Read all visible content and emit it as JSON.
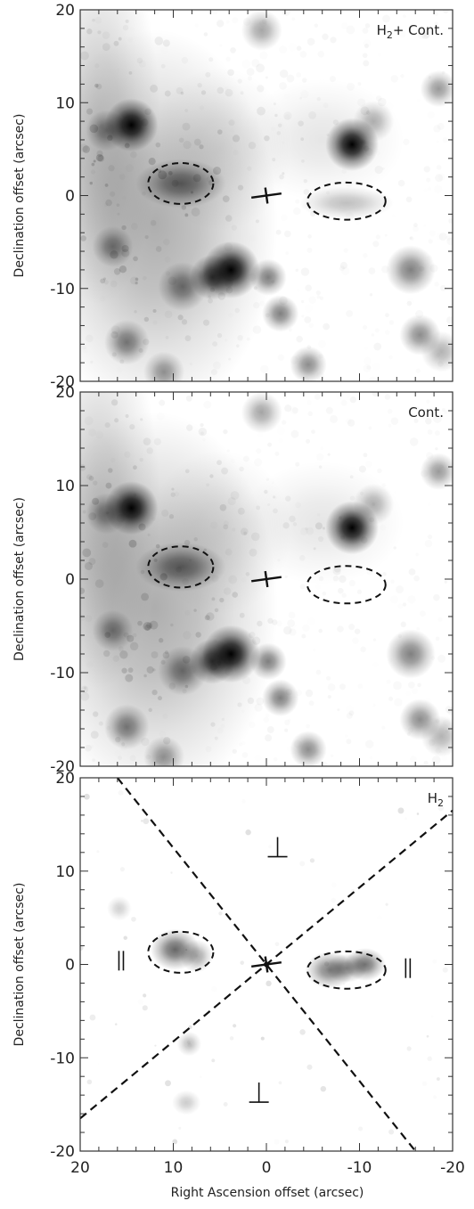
{
  "figure": {
    "x_axis_label": "Right Ascension offset (arcsec)",
    "panels": [
      {
        "id": "h2-plus-cont",
        "label_main": "H",
        "label_sub": "2",
        "label_rest": "+ Cont.",
        "y_axis_label": "Declination offset (arcsec)",
        "show_dashed_lines": false,
        "show_orientation_symbols": false
      },
      {
        "id": "cont",
        "label_main": "Cont.",
        "label_sub": "",
        "label_rest": "",
        "y_axis_label": "Declination offset (arcsec)",
        "show_dashed_lines": false,
        "show_orientation_symbols": false
      },
      {
        "id": "h2",
        "label_main": "H",
        "label_sub": "2",
        "label_rest": "",
        "y_axis_label": "Declination offset (arcsec)",
        "show_dashed_lines": true,
        "show_orientation_symbols": true
      }
    ],
    "axes": {
      "xlim": [
        20,
        -20
      ],
      "ylim": [
        -20,
        20
      ],
      "x_ticks": [
        20,
        10,
        0,
        -10,
        -20
      ],
      "y_ticks": [
        20,
        10,
        0,
        -10,
        -20
      ]
    },
    "ellipses": [
      {
        "ra": 9.2,
        "dec": 1.3,
        "ra_radius": 3.5,
        "dec_radius": 2.2
      },
      {
        "ra": -8.6,
        "dec": -0.6,
        "ra_radius": 4.2,
        "dec_radius": 2.0
      }
    ],
    "stars": [
      {
        "ra": 14.5,
        "dec": 7.6,
        "sigma": 1.3,
        "peak": 1.0
      },
      {
        "ra": -9.2,
        "dec": 5.5,
        "sigma": 1.3,
        "peak": 1.0
      },
      {
        "ra": 3.8,
        "dec": -8.0,
        "sigma": 1.4,
        "peak": 1.0
      },
      {
        "ra": 5.8,
        "dec": -8.8,
        "sigma": 1.1,
        "peak": 0.75
      },
      {
        "ra": 9.0,
        "dec": -9.8,
        "sigma": 1.2,
        "peak": 0.5
      },
      {
        "ra": 17.2,
        "dec": 7.0,
        "sigma": 1.0,
        "peak": 0.45
      },
      {
        "ra": 16.5,
        "dec": -5.5,
        "sigma": 1.0,
        "peak": 0.45
      },
      {
        "ra": 15.0,
        "dec": -15.8,
        "sigma": 1.1,
        "peak": 0.5
      },
      {
        "ra": 11.0,
        "dec": -19.0,
        "sigma": 1.0,
        "peak": 0.4
      },
      {
        "ra": -0.2,
        "dec": -8.8,
        "sigma": 0.9,
        "peak": 0.5
      },
      {
        "ra": -1.5,
        "dec": -12.7,
        "sigma": 0.9,
        "peak": 0.5
      },
      {
        "ra": -4.5,
        "dec": -18.2,
        "sigma": 0.9,
        "peak": 0.45
      },
      {
        "ra": -15.5,
        "dec": -8.0,
        "sigma": 1.2,
        "peak": 0.5
      },
      {
        "ra": -16.5,
        "dec": -15.0,
        "sigma": 1.0,
        "peak": 0.45
      },
      {
        "ra": -18.5,
        "dec": 11.5,
        "sigma": 0.9,
        "peak": 0.4
      },
      {
        "ra": 0.5,
        "dec": 17.8,
        "sigma": 1.0,
        "peak": 0.35
      },
      {
        "ra": -11.5,
        "dec": 8.0,
        "sigma": 1.0,
        "peak": 0.3
      },
      {
        "ra": -18.8,
        "dec": -16.8,
        "sigma": 1.0,
        "peak": 0.3
      }
    ],
    "nebula": [
      {
        "ra": 12.0,
        "dec": -3.0,
        "sigma_ra": 6.0,
        "sigma_dec": 9.5,
        "peak": 0.32
      },
      {
        "ra": 18.0,
        "dec": 8.0,
        "sigma_ra": 3.0,
        "sigma_dec": 9.0,
        "peak": 0.22
      },
      {
        "ra": 5.0,
        "dec": 5.0,
        "sigma_ra": 3.5,
        "sigma_dec": 4.0,
        "peak": 0.12
      },
      {
        "ra": -6.0,
        "dec": 6.0,
        "sigma_ra": 4.0,
        "sigma_dec": 3.0,
        "peak": 0.1
      }
    ],
    "knot_in_ellipse": [
      {
        "ra": 9.2,
        "dec": 1.3,
        "sigma_ra": 2.2,
        "sigma_dec": 1.2,
        "peak": 0.55
      },
      {
        "ra": -8.6,
        "dec": -0.8,
        "sigma_ra": 2.3,
        "sigma_dec": 0.8,
        "peak": 0.25
      }
    ],
    "h2_knots": [
      {
        "ra": 9.8,
        "dec": 1.6,
        "sigma_ra": 1.2,
        "sigma_dec": 1.0,
        "peak": 0.6
      },
      {
        "ra": 7.5,
        "dec": 0.9,
        "sigma_ra": 0.8,
        "sigma_dec": 0.8,
        "peak": 0.35
      },
      {
        "ra": -6.8,
        "dec": -0.6,
        "sigma_ra": 1.2,
        "sigma_dec": 0.9,
        "peak": 0.5
      },
      {
        "ra": -10.6,
        "dec": 0.0,
        "sigma_ra": 1.0,
        "sigma_dec": 0.8,
        "peak": 0.55
      },
      {
        "ra": -8.6,
        "dec": -0.4,
        "sigma_ra": 1.0,
        "sigma_dec": 0.7,
        "peak": 0.4
      },
      {
        "ra": 8.3,
        "dec": -8.5,
        "sigma_ra": 0.6,
        "sigma_dec": 0.6,
        "peak": 0.25
      },
      {
        "ra": 8.6,
        "dec": -14.8,
        "sigma_ra": 0.7,
        "sigma_dec": 0.6,
        "peak": 0.2
      },
      {
        "ra": 15.8,
        "dec": 6.0,
        "sigma_ra": 0.6,
        "sigma_dec": 0.6,
        "peak": 0.18
      }
    ],
    "dashed_lines": [
      {
        "from": [
          16,
          20
        ],
        "to": [
          -16,
          -20
        ]
      },
      {
        "from": [
          20,
          -16.5
        ],
        "to": [
          -20,
          16.5
        ]
      }
    ],
    "orientation_symbols": [
      {
        "kind": "perpendicular",
        "ra": -1.2,
        "dec": 12.5
      },
      {
        "kind": "perpendicular",
        "ra": 0.8,
        "dec": -13.8
      },
      {
        "kind": "parallel",
        "ra": 15.6,
        "dec": 0.4
      },
      {
        "kind": "parallel",
        "ra": -15.2,
        "dec": -0.4
      }
    ],
    "source_marker": {
      "ra": 0,
      "dec": 0,
      "tilt_deg": 8
    },
    "colors": {
      "ink": "#111111",
      "axis": "#333333",
      "gray_min": "#ffffff",
      "gray_max": "#000000"
    }
  }
}
